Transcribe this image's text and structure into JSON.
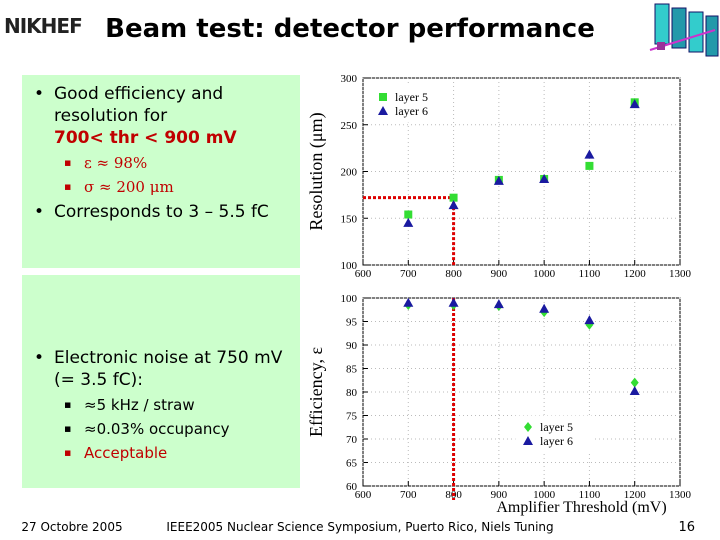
{
  "header": {
    "logo": "NIKHEF",
    "title": "Beam test: detector performance"
  },
  "box1": {
    "bullet1": "Good efficiency and resolution for",
    "highlight": "700< thr < 900 mV",
    "sub": [
      "ε ≈ 98%",
      "σ ≈ 200 μm"
    ],
    "bullet2": "Corresponds to 3 – 5.5 fC"
  },
  "box2": {
    "bullet": "Electronic noise at 750 mV (= 3.5 fC):",
    "sub": [
      "≈5 kHz / straw",
      "≈0.03% occupancy",
      "Acceptable"
    ]
  },
  "footer": {
    "date": "27 Octobre 2005",
    "event": "IEEE2005 Nuclear Science Symposium, Puerto Rico, Niels Tuning",
    "page": "16"
  },
  "chart_data": [
    {
      "type": "scatter",
      "ylabel": "Resolution (μm)",
      "x": [
        700,
        800,
        900,
        1000,
        1100,
        1200
      ],
      "series": [
        {
          "name": "layer 5",
          "color": "#33dd33",
          "marker": "square",
          "values": [
            154,
            172,
            191,
            192,
            206,
            274
          ]
        },
        {
          "name": "layer 6",
          "color": "#1a1aa0",
          "marker": "triangle",
          "values": [
            145,
            164,
            190,
            192,
            218,
            272
          ]
        }
      ],
      "xlim": [
        600,
        1300
      ],
      "xticks": [
        600,
        700,
        800,
        900,
        1000,
        1100,
        1200,
        1300
      ],
      "ylim": [
        100,
        300
      ],
      "yticks": [
        100,
        150,
        200,
        250,
        300
      ],
      "grid": true,
      "legend": "upper left"
    },
    {
      "type": "scatter",
      "ylabel": "Efficiency, ε",
      "xlabel": "Amplifier Threshold (mV)",
      "x": [
        700,
        800,
        900,
        1000,
        1100,
        1200
      ],
      "series": [
        {
          "name": "layer 5",
          "color": "#33dd33",
          "marker": "diamond",
          "values": [
            98.5,
            98.5,
            98.3,
            97,
            94.3,
            82
          ]
        },
        {
          "name": "layer 6",
          "color": "#1a1aa0",
          "marker": "triangle",
          "values": [
            99,
            99,
            98.7,
            97.7,
            95.3,
            80.2
          ]
        }
      ],
      "xlim": [
        600,
        1300
      ],
      "xticks": [
        600,
        700,
        800,
        900,
        1000,
        1100,
        1200,
        1300
      ],
      "ylim": [
        60,
        100
      ],
      "yticks": [
        60,
        65,
        70,
        75,
        80,
        85,
        90,
        95,
        100
      ],
      "grid": true,
      "legend": "lower right"
    }
  ]
}
